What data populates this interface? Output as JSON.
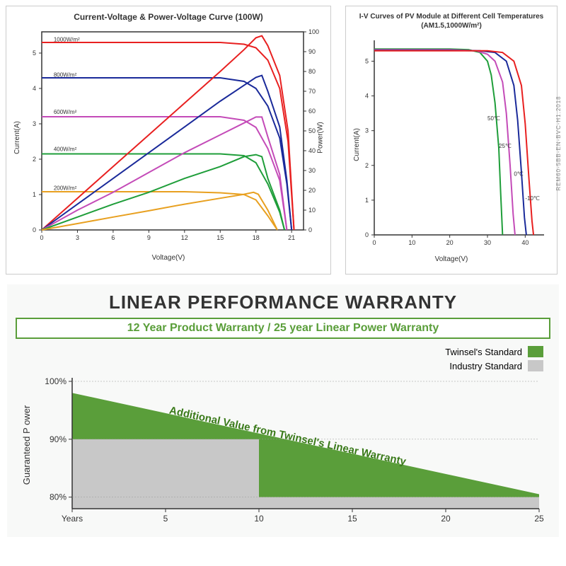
{
  "chart1": {
    "title": "Current-Voltage & Power-Voltage Curve (100W)",
    "xlabel": "Voltage(V)",
    "ylabel": "Current(A)",
    "y2label": "Power(W)",
    "xlim": [
      0,
      22
    ],
    "xtick_step": 3,
    "ylim": [
      0,
      5.6
    ],
    "ytick_step": 1,
    "y2lim": [
      0,
      100
    ],
    "y2tick_step": 10,
    "colors": {
      "1000": "#e82020",
      "800": "#1a2a9a",
      "600": "#c44bb8",
      "400": "#1f9e3a",
      "200": "#e8a020"
    },
    "iv_series": [
      {
        "label": "1000W/m²",
        "key": "1000",
        "y_at_label": 5.25,
        "points": [
          [
            0,
            5.3
          ],
          [
            3,
            5.3
          ],
          [
            6,
            5.3
          ],
          [
            9,
            5.3
          ],
          [
            12,
            5.3
          ],
          [
            15,
            5.3
          ],
          [
            17,
            5.25
          ],
          [
            18,
            5.15
          ],
          [
            19,
            4.8
          ],
          [
            20,
            4.0
          ],
          [
            20.7,
            2.5
          ],
          [
            21.2,
            0
          ]
        ]
      },
      {
        "label": "800W/m²",
        "key": "800",
        "y_at_label": 4.25,
        "points": [
          [
            0,
            4.3
          ],
          [
            3,
            4.3
          ],
          [
            6,
            4.3
          ],
          [
            9,
            4.3
          ],
          [
            12,
            4.3
          ],
          [
            15,
            4.3
          ],
          [
            17,
            4.2
          ],
          [
            18,
            4.0
          ],
          [
            19,
            3.5
          ],
          [
            20,
            2.6
          ],
          [
            20.6,
            1.3
          ],
          [
            21,
            0
          ]
        ]
      },
      {
        "label": "600W/m²",
        "key": "600",
        "y_at_label": 3.2,
        "points": [
          [
            0,
            3.2
          ],
          [
            3,
            3.2
          ],
          [
            6,
            3.2
          ],
          [
            9,
            3.2
          ],
          [
            12,
            3.2
          ],
          [
            15,
            3.2
          ],
          [
            17,
            3.1
          ],
          [
            18,
            2.9
          ],
          [
            19,
            2.3
          ],
          [
            20,
            1.4
          ],
          [
            20.6,
            0
          ]
        ]
      },
      {
        "label": "400W/m²",
        "key": "400",
        "y_at_label": 2.15,
        "points": [
          [
            0,
            2.15
          ],
          [
            3,
            2.15
          ],
          [
            6,
            2.15
          ],
          [
            9,
            2.15
          ],
          [
            12,
            2.15
          ],
          [
            15,
            2.15
          ],
          [
            17,
            2.1
          ],
          [
            18,
            1.9
          ],
          [
            19,
            1.3
          ],
          [
            20,
            0.5
          ],
          [
            20.4,
            0
          ]
        ]
      },
      {
        "label": "200W/m²",
        "key": "200",
        "y_at_label": 1.05,
        "points": [
          [
            0,
            1.08
          ],
          [
            3,
            1.08
          ],
          [
            6,
            1.08
          ],
          [
            9,
            1.08
          ],
          [
            12,
            1.08
          ],
          [
            15,
            1.05
          ],
          [
            17,
            1.0
          ],
          [
            18,
            0.85
          ],
          [
            19,
            0.4
          ],
          [
            19.8,
            0
          ]
        ]
      }
    ],
    "pv_series": [
      {
        "key": "1000",
        "points": [
          [
            0,
            0
          ],
          [
            3,
            16
          ],
          [
            6,
            32
          ],
          [
            9,
            48
          ],
          [
            12,
            64
          ],
          [
            15,
            80
          ],
          [
            17,
            91
          ],
          [
            18,
            97
          ],
          [
            18.5,
            98
          ],
          [
            19,
            93
          ],
          [
            20,
            78
          ],
          [
            20.7,
            50
          ],
          [
            21.2,
            0
          ]
        ]
      },
      {
        "key": "800",
        "points": [
          [
            0,
            0
          ],
          [
            3,
            13
          ],
          [
            6,
            26
          ],
          [
            9,
            39
          ],
          [
            12,
            52
          ],
          [
            15,
            65
          ],
          [
            17,
            73
          ],
          [
            18,
            77
          ],
          [
            18.5,
            78
          ],
          [
            19,
            70
          ],
          [
            20,
            52
          ],
          [
            20.6,
            25
          ],
          [
            21,
            0
          ]
        ]
      },
      {
        "key": "600",
        "points": [
          [
            0,
            0
          ],
          [
            3,
            10
          ],
          [
            6,
            19
          ],
          [
            9,
            29
          ],
          [
            12,
            39
          ],
          [
            15,
            48
          ],
          [
            17,
            54
          ],
          [
            18,
            57
          ],
          [
            18.5,
            57
          ],
          [
            19,
            47
          ],
          [
            20,
            28
          ],
          [
            20.6,
            0
          ]
        ]
      },
      {
        "key": "400",
        "points": [
          [
            0,
            0
          ],
          [
            3,
            6.5
          ],
          [
            6,
            13
          ],
          [
            9,
            19
          ],
          [
            12,
            26
          ],
          [
            15,
            32
          ],
          [
            17,
            37
          ],
          [
            18,
            38
          ],
          [
            18.5,
            37
          ],
          [
            19,
            26
          ],
          [
            20,
            10
          ],
          [
            20.4,
            0
          ]
        ]
      },
      {
        "key": "200",
        "points": [
          [
            0,
            0
          ],
          [
            3,
            3.2
          ],
          [
            6,
            6.5
          ],
          [
            9,
            9.7
          ],
          [
            12,
            13
          ],
          [
            15,
            16
          ],
          [
            17,
            18
          ],
          [
            17.8,
            19
          ],
          [
            18.2,
            18
          ],
          [
            19,
            10
          ],
          [
            19.8,
            0
          ]
        ]
      }
    ]
  },
  "chart2": {
    "title": "I-V Curves of PV Module at Different Cell Temperatures (AM1.5,1000W/m²)",
    "xlabel": "Voltage(V)",
    "ylabel": "Current(A)",
    "xlim": [
      0,
      45
    ],
    "xtick_step": 10,
    "ylim": [
      0,
      5.6
    ],
    "ytick_step": 1,
    "side_text": "REM60-5BB-EN-BVC-H1.2018",
    "series": [
      {
        "label": "50℃",
        "color": "#1f9e3a",
        "label_x": 30,
        "label_y": 3.3,
        "points": [
          [
            0,
            5.35
          ],
          [
            10,
            5.35
          ],
          [
            20,
            5.35
          ],
          [
            25,
            5.33
          ],
          [
            28,
            5.25
          ],
          [
            30,
            5.0
          ],
          [
            31,
            4.6
          ],
          [
            32,
            3.8
          ],
          [
            33,
            2.5
          ],
          [
            33.5,
            1.2
          ],
          [
            34,
            0
          ]
        ]
      },
      {
        "label": "25℃",
        "color": "#c44bb8",
        "label_x": 33,
        "label_y": 2.5,
        "points": [
          [
            0,
            5.33
          ],
          [
            10,
            5.33
          ],
          [
            20,
            5.33
          ],
          [
            27,
            5.3
          ],
          [
            30,
            5.2
          ],
          [
            32,
            5.0
          ],
          [
            34,
            4.4
          ],
          [
            35,
            3.5
          ],
          [
            36,
            2.0
          ],
          [
            36.8,
            0.6
          ],
          [
            37.3,
            0
          ]
        ]
      },
      {
        "label": "0℃",
        "color": "#1a2a9a",
        "label_x": 37,
        "label_y": 1.7,
        "points": [
          [
            0,
            5.31
          ],
          [
            10,
            5.31
          ],
          [
            20,
            5.31
          ],
          [
            28,
            5.3
          ],
          [
            32,
            5.25
          ],
          [
            35,
            5.0
          ],
          [
            37,
            4.3
          ],
          [
            38,
            3.3
          ],
          [
            39,
            1.8
          ],
          [
            39.8,
            0.5
          ],
          [
            40.3,
            0
          ]
        ]
      },
      {
        "label": "-10℃",
        "color": "#e82020",
        "label_x": 40,
        "label_y": 1.0,
        "points": [
          [
            0,
            5.3
          ],
          [
            10,
            5.3
          ],
          [
            20,
            5.3
          ],
          [
            30,
            5.3
          ],
          [
            34,
            5.25
          ],
          [
            37,
            5.0
          ],
          [
            39,
            4.3
          ],
          [
            40,
            3.2
          ],
          [
            41,
            1.6
          ],
          [
            41.8,
            0.4
          ],
          [
            42.2,
            0
          ]
        ]
      }
    ]
  },
  "warranty": {
    "title": "LINEAR PERFORMANCE WARRANTY",
    "subtitle": "12 Year Product Warranty / 25 year Linear Power Warranty",
    "xlabel": "Years",
    "ylabel": "Guaranteed P ower",
    "ylim": [
      78,
      100
    ],
    "yticks": [
      80,
      90,
      100
    ],
    "xticks": [
      "Years",
      5,
      10,
      15,
      20,
      25
    ],
    "annotation": "Additional Value from Twinsel's Linear Warranty",
    "legend": [
      {
        "label": "Twinsel's Standard",
        "color": "#5a9e3a"
      },
      {
        "label": "Industry Standard",
        "color": "#c8c8c8"
      }
    ],
    "twinsel_start": 98,
    "twinsel_end": 80.5,
    "industry": [
      [
        0,
        90
      ],
      [
        10,
        90
      ],
      [
        10,
        80
      ],
      [
        25,
        80
      ]
    ]
  }
}
